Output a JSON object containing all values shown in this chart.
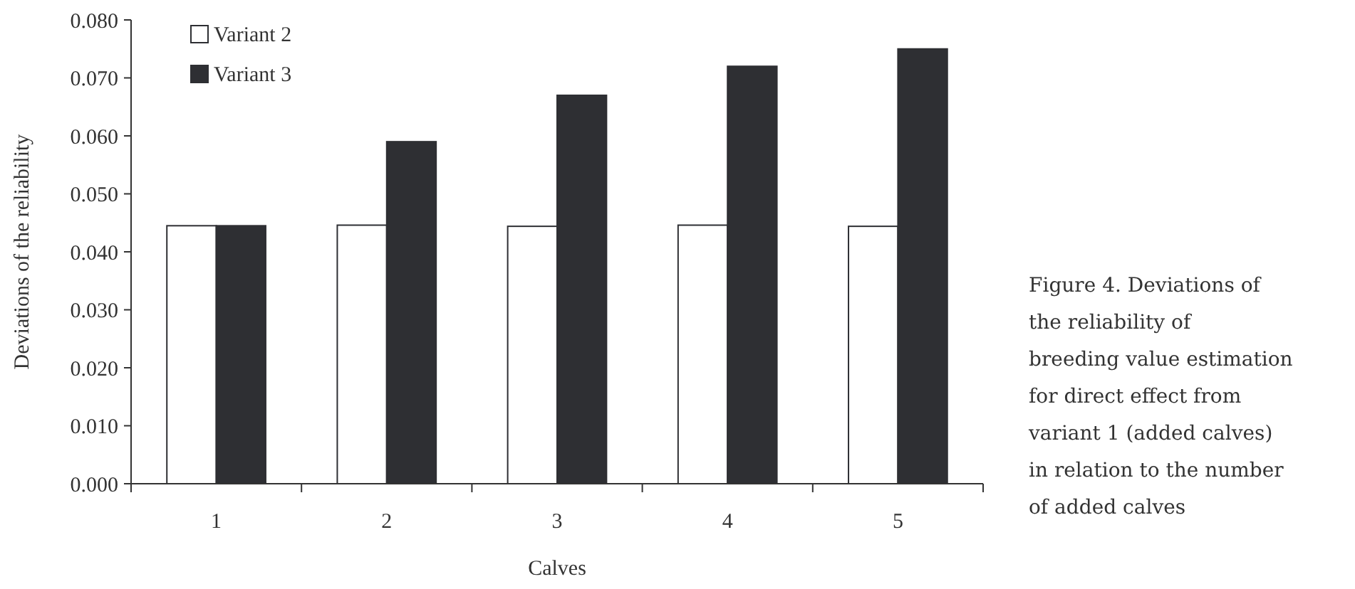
{
  "chart_data": {
    "type": "bar",
    "xlabel": "Calves",
    "ylabel": "Deviations of the reliability",
    "categories": [
      "1",
      "2",
      "3",
      "4",
      "5"
    ],
    "series": [
      {
        "name": "Variant 2",
        "color": "#ffffff",
        "values": [
          0.0445,
          0.0446,
          0.0444,
          0.0446,
          0.0444
        ]
      },
      {
        "name": "Variant 3",
        "color": "#2e2f33",
        "values": [
          0.0445,
          0.059,
          0.067,
          0.072,
          0.075
        ]
      }
    ],
    "ylim": [
      0,
      0.08
    ],
    "yticks": [
      {
        "value": 0,
        "label": "0.000"
      },
      {
        "value": 0.01,
        "label": "0.010"
      },
      {
        "value": 0.02,
        "label": "0.020"
      },
      {
        "value": 0.03,
        "label": "0.030"
      },
      {
        "value": 0.04,
        "label": "0.040"
      },
      {
        "value": 0.05,
        "label": "0.050"
      },
      {
        "value": 0.06,
        "label": "0.060"
      },
      {
        "value": 0.07,
        "label": "0.070"
      },
      {
        "value": 0.08,
        "label": "0.080"
      }
    ],
    "grid": false,
    "legend": "top left",
    "annotations": [
      "Figure 4. Deviations of the reliability of breeding value estimation for direct effect from variant 1 (added calves) in relation to the number of added calves"
    ]
  }
}
